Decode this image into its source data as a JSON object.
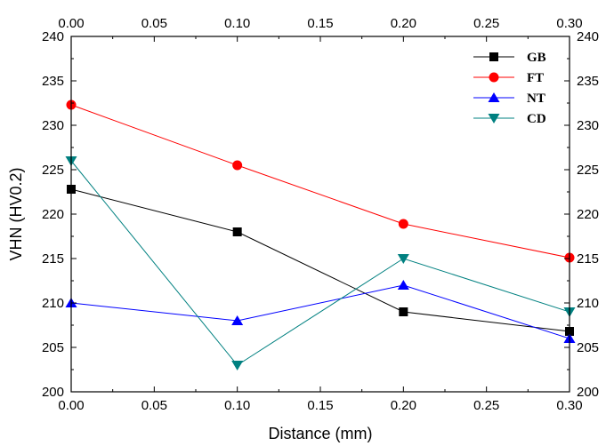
{
  "chart_data": {
    "type": "line",
    "title": "",
    "xlabel": "Distance (mm)",
    "ylabel": "VHN (HV0.2)",
    "xlim": [
      0.0,
      0.3
    ],
    "ylim": [
      200,
      240
    ],
    "x_ticks": [
      "0.00",
      "0.05",
      "0.10",
      "0.15",
      "0.20",
      "0.25",
      "0.30"
    ],
    "y_ticks": [
      "200",
      "205",
      "210",
      "215",
      "220",
      "225",
      "230",
      "235",
      "240"
    ],
    "x": [
      0.0,
      0.1,
      0.2,
      0.3
    ],
    "grid": false,
    "legend_position": "top-right",
    "series": [
      {
        "name": "GB",
        "marker": "square",
        "color": "#000000",
        "values": [
          222.8,
          218.0,
          209.0,
          206.8
        ]
      },
      {
        "name": "FT",
        "marker": "circle",
        "color": "#ff0000",
        "values": [
          232.3,
          225.5,
          218.9,
          215.1
        ]
      },
      {
        "name": "NT",
        "marker": "triangle-up",
        "color": "#0000ff",
        "values": [
          210.0,
          208.0,
          212.0,
          206.0
        ]
      },
      {
        "name": "CD",
        "marker": "triangle-down",
        "color": "#008080",
        "values": [
          226.0,
          203.0,
          215.0,
          209.0
        ]
      }
    ]
  }
}
